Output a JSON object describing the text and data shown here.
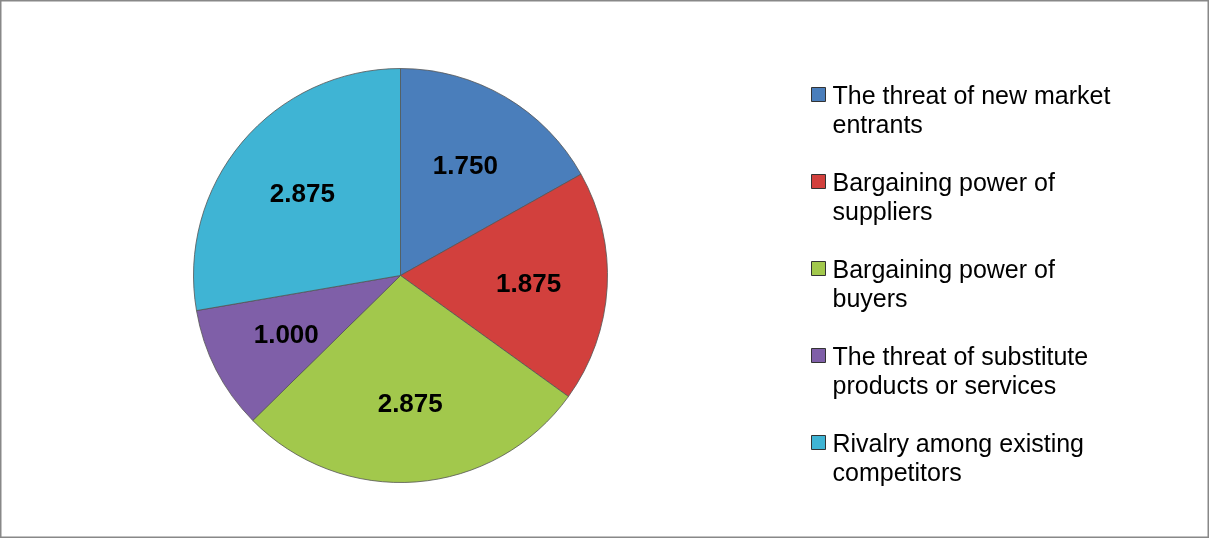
{
  "chart_data": {
    "type": "pie",
    "categories": [
      "The threat of new market entrants",
      "Bargaining power of suppliers",
      "Bargaining power of buyers",
      "The threat of substitute products or services",
      "Rivalry among existing competitors"
    ],
    "values": [
      1.75,
      1.875,
      2.875,
      1.0,
      2.875
    ],
    "value_labels": [
      "1.750",
      "1.875",
      "2.875",
      "1.000",
      "2.875"
    ],
    "colors": [
      "#4a7ebb",
      "#d2403d",
      "#a2c84c",
      "#7f5fa8",
      "#3fb4d4"
    ],
    "legend": "right"
  }
}
